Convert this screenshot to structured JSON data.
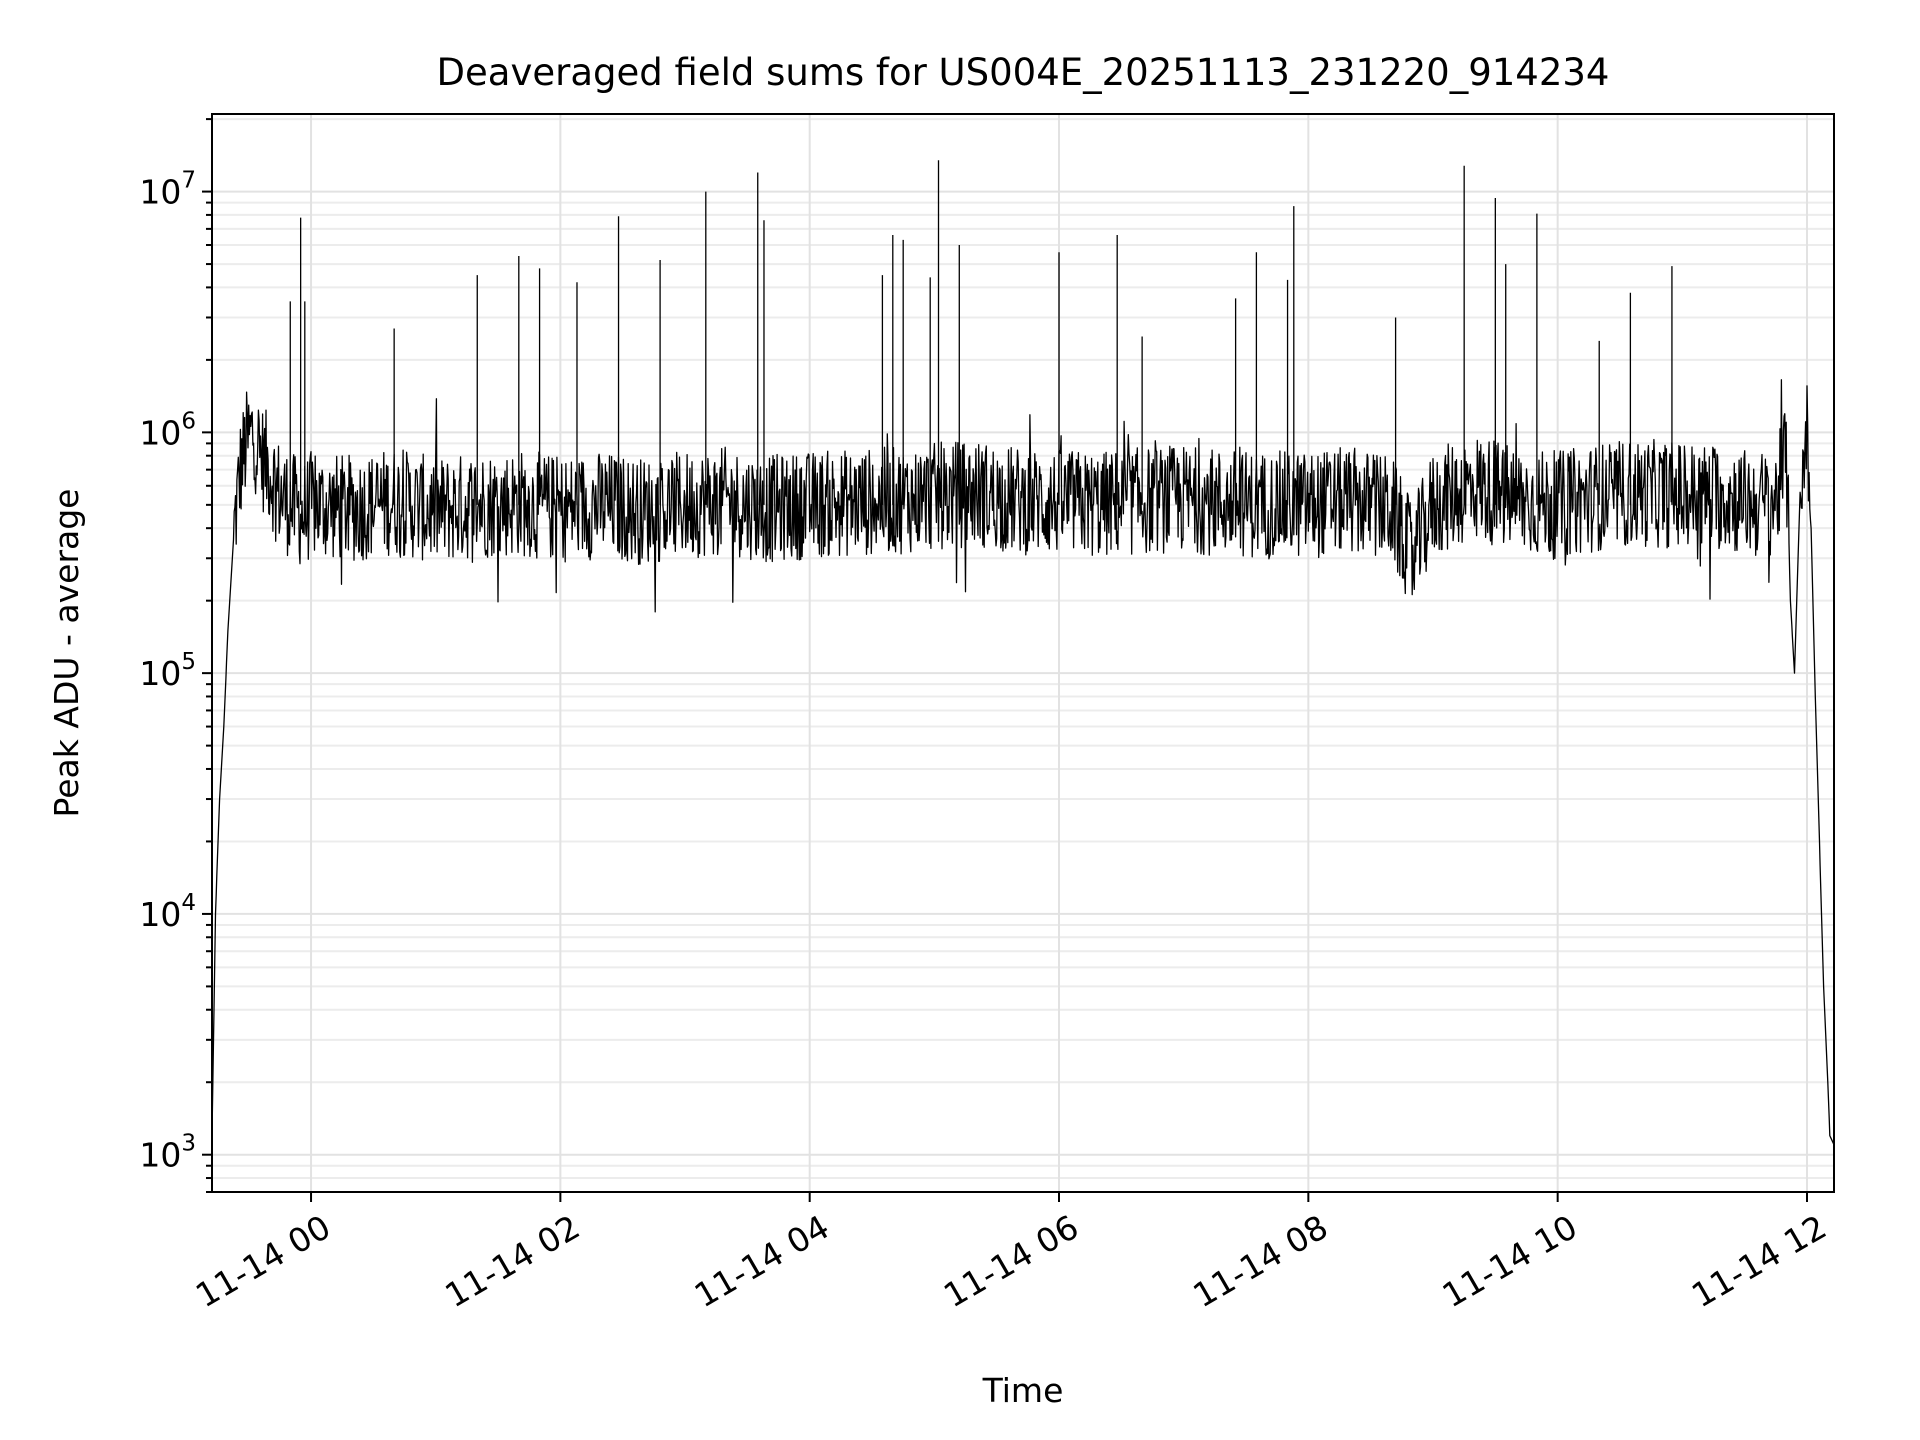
{
  "chart_data": {
    "type": "line",
    "title": "Deaveraged field sums for US004E_20251113_231220_914234",
    "xlabel": "Time",
    "ylabel": "Peak ADU - average",
    "yscale": "log",
    "ylim": [
      700,
      21000000
    ],
    "xlim": [
      "2025-11-13T23:12:20",
      "2025-11-14T12:13:00"
    ],
    "grid": true,
    "x_ticks": [
      {
        "value": "2025-11-14T00:00",
        "label": "11-14 00"
      },
      {
        "value": "2025-11-14T02:00",
        "label": "11-14 02"
      },
      {
        "value": "2025-11-14T04:00",
        "label": "11-14 04"
      },
      {
        "value": "2025-11-14T06:00",
        "label": "11-14 06"
      },
      {
        "value": "2025-11-14T08:00",
        "label": "11-14 08"
      },
      {
        "value": "2025-11-14T10:00",
        "label": "11-14 10"
      },
      {
        "value": "2025-11-14T12:00",
        "label": "11-14 12"
      }
    ],
    "y_ticks": [
      {
        "value": 1000,
        "base": "10",
        "exp": "3"
      },
      {
        "value": 10000,
        "base": "10",
        "exp": "4"
      },
      {
        "value": 100000,
        "base": "10",
        "exp": "5"
      },
      {
        "value": 1000000,
        "base": "10",
        "exp": "6"
      },
      {
        "value": 10000000,
        "base": "10",
        "exp": "7"
      }
    ],
    "line_color": "#000000",
    "series": [
      {
        "x": [
          "2025-11-13T23:12:20",
          "2025-11-13T23:14",
          "2025-11-13T23:16",
          "2025-11-13T23:18",
          "2025-11-13T23:20",
          "2025-11-13T23:23",
          "2025-11-13T23:26",
          "2025-11-13T23:29",
          "2025-11-13T23:32",
          "2025-11-13T23:36",
          "2025-11-13T23:40",
          "2025-11-13T23:45",
          "2025-11-13T23:50",
          "2025-11-13T23:53",
          "2025-11-13T23:56",
          "2025-11-14T00:00",
          "2025-11-14T00:20",
          "2025-11-14T00:40",
          "2025-11-14T01:00",
          "2025-11-14T01:20",
          "2025-11-14T01:40",
          "2025-11-14T02:00",
          "2025-11-14T02:20",
          "2025-11-14T02:40",
          "2025-11-14T03:00",
          "2025-11-14T03:20",
          "2025-11-14T03:40",
          "2025-11-14T04:00",
          "2025-11-14T04:20",
          "2025-11-14T04:40",
          "2025-11-14T05:00",
          "2025-11-14T05:20",
          "2025-11-14T05:40",
          "2025-11-14T06:00",
          "2025-11-14T06:20",
          "2025-11-14T06:40",
          "2025-11-14T07:00",
          "2025-11-14T07:20",
          "2025-11-14T07:40",
          "2025-11-14T08:00",
          "2025-11-14T08:20",
          "2025-11-14T08:40",
          "2025-11-14T08:50",
          "2025-11-14T09:00",
          "2025-11-14T09:10",
          "2025-11-14T09:20",
          "2025-11-14T09:40",
          "2025-11-14T10:00",
          "2025-11-14T10:20",
          "2025-11-14T10:40",
          "2025-11-14T11:00",
          "2025-11-14T11:20",
          "2025-11-14T11:35",
          "2025-11-14T11:45",
          "2025-11-14T11:50",
          "2025-11-14T11:52",
          "2025-11-14T11:54",
          "2025-11-14T11:57",
          "2025-11-14T12:00",
          "2025-11-14T12:02",
          "2025-11-14T12:04",
          "2025-11-14T12:06",
          "2025-11-14T12:08",
          "2025-11-14T12:10",
          "2025-11-14T12:11",
          "2025-11-14T12:13"
        ],
        "y": [
          1200,
          10000,
          30000,
          60000,
          150000,
          400000,
          700000,
          900000,
          1000000,
          800000,
          700000,
          550000,
          500000,
          480000,
          450000,
          500000,
          480000,
          520000,
          470000,
          500000,
          510000,
          480000,
          500000,
          470000,
          500000,
          520000,
          480000,
          500000,
          510000,
          520000,
          540000,
          560000,
          520000,
          510000,
          500000,
          520000,
          530000,
          510000,
          500000,
          500000,
          520000,
          480000,
          300000,
          500000,
          550000,
          600000,
          520000,
          500000,
          540000,
          560000,
          550000,
          540000,
          500000,
          520000,
          800000,
          200000,
          100000,
          700000,
          1000000,
          400000,
          80000,
          20000,
          5000,
          2000,
          1200,
          1100
        ]
      }
    ],
    "spikes": [
      {
        "x": "2025-11-13T23:50",
        "y": 3500000
      },
      {
        "x": "2025-11-13T23:55",
        "y": 7800000
      },
      {
        "x": "2025-11-13T23:57",
        "y": 3500000
      },
      {
        "x": "2025-11-14T00:40",
        "y": 2700000
      },
      {
        "x": "2025-11-14T01:20",
        "y": 4500000
      },
      {
        "x": "2025-11-14T01:40",
        "y": 5400000
      },
      {
        "x": "2025-11-14T01:50",
        "y": 4800000
      },
      {
        "x": "2025-11-14T02:08",
        "y": 4200000
      },
      {
        "x": "2025-11-14T02:28",
        "y": 7900000
      },
      {
        "x": "2025-11-14T02:48",
        "y": 5200000
      },
      {
        "x": "2025-11-14T03:10",
        "y": 10000000
      },
      {
        "x": "2025-11-14T03:35",
        "y": 12000000
      },
      {
        "x": "2025-11-14T03:38",
        "y": 7600000
      },
      {
        "x": "2025-11-14T04:35",
        "y": 4500000
      },
      {
        "x": "2025-11-14T04:40",
        "y": 6600000
      },
      {
        "x": "2025-11-14T04:45",
        "y": 6300000
      },
      {
        "x": "2025-11-14T04:58",
        "y": 4400000
      },
      {
        "x": "2025-11-14T05:02",
        "y": 13500000
      },
      {
        "x": "2025-11-14T05:12",
        "y": 6000000
      },
      {
        "x": "2025-11-14T06:00",
        "y": 5600000
      },
      {
        "x": "2025-11-14T06:28",
        "y": 6600000
      },
      {
        "x": "2025-11-14T06:40",
        "y": 2500000
      },
      {
        "x": "2025-11-14T07:25",
        "y": 3600000
      },
      {
        "x": "2025-11-14T07:35",
        "y": 5600000
      },
      {
        "x": "2025-11-14T07:50",
        "y": 4300000
      },
      {
        "x": "2025-11-14T07:53",
        "y": 8700000
      },
      {
        "x": "2025-11-14T08:42",
        "y": 3000000
      },
      {
        "x": "2025-11-14T09:15",
        "y": 12800000
      },
      {
        "x": "2025-11-14T09:30",
        "y": 9400000
      },
      {
        "x": "2025-11-14T09:35",
        "y": 5000000
      },
      {
        "x": "2025-11-14T09:50",
        "y": 8100000
      },
      {
        "x": "2025-11-14T10:20",
        "y": 2400000
      },
      {
        "x": "2025-11-14T10:35",
        "y": 3800000
      },
      {
        "x": "2025-11-14T10:55",
        "y": 4900000
      }
    ]
  }
}
